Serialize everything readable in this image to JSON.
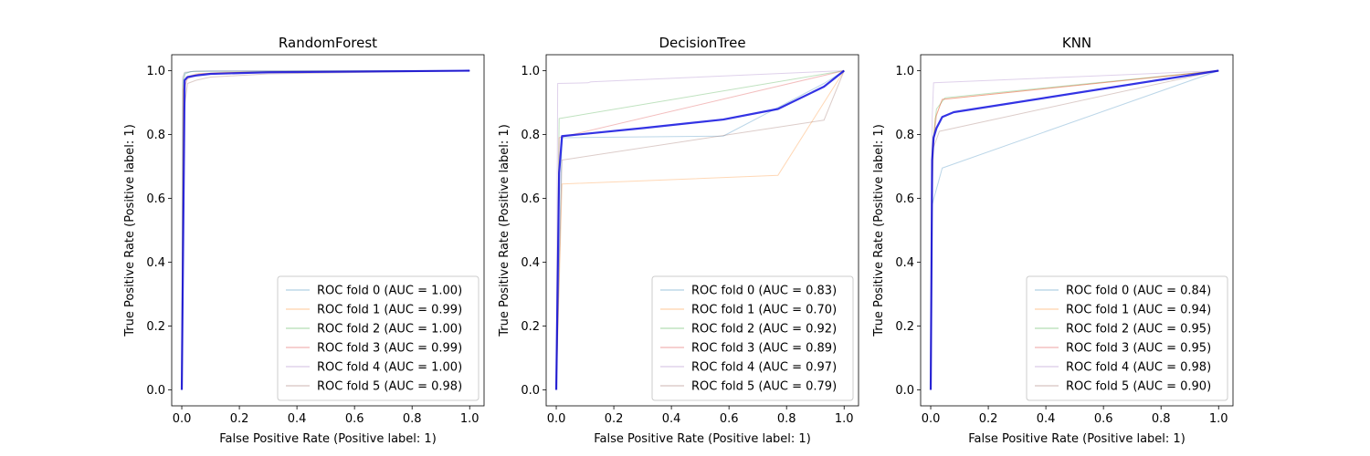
{
  "chart_data": [
    {
      "type": "line",
      "title": "RandomForest",
      "xlabel": "False Positive Rate (Positive label: 1)",
      "ylabel": "True Positive Rate (Positive label: 1)",
      "xlim": [
        -0.035,
        1.05
      ],
      "ylim": [
        -0.05,
        1.05
      ],
      "xticks": [
        "0.0",
        "0.2",
        "0.4",
        "0.6",
        "0.8",
        "1.0"
      ],
      "yticks": [
        "0.0",
        "0.2",
        "0.4",
        "0.6",
        "0.8",
        "1.0"
      ],
      "legend_position": "lower-right",
      "grid": false,
      "series": [
        {
          "name": "ROC fold 0 (AUC = 1.00)",
          "color": "#1f77b4",
          "x": [
            0,
            0.004,
            0.012,
            0.03,
            0.1,
            1.0
          ],
          "y": [
            0,
            0.96,
            0.99,
            0.997,
            0.999,
            1.0
          ]
        },
        {
          "name": "ROC fold 1 (AUC = 0.99)",
          "color": "#ff7f0e",
          "x": [
            0,
            0.005,
            0.015,
            0.05,
            0.15,
            1.0
          ],
          "y": [
            0,
            0.95,
            0.98,
            0.99,
            0.995,
            1.0
          ]
        },
        {
          "name": "ROC fold 2 (AUC = 1.00)",
          "color": "#2ca02c",
          "x": [
            0,
            0.004,
            0.01,
            0.04,
            1.0
          ],
          "y": [
            0,
            0.97,
            0.993,
            0.998,
            1.0
          ]
        },
        {
          "name": "ROC fold 3 (AUC = 0.99)",
          "color": "#d62728",
          "x": [
            0,
            0.006,
            0.02,
            0.06,
            0.2,
            1.0
          ],
          "y": [
            0,
            0.94,
            0.975,
            0.99,
            0.995,
            1.0
          ]
        },
        {
          "name": "ROC fold 4 (AUC = 1.00)",
          "color": "#9467bd",
          "x": [
            0,
            0.003,
            0.01,
            0.05,
            1.0
          ],
          "y": [
            0,
            0.98,
            0.995,
            0.999,
            1.0
          ]
        },
        {
          "name": "ROC fold 5 (AUC = 0.98)",
          "color": "#8c564b",
          "x": [
            0,
            0.008,
            0.02,
            0.05,
            0.1,
            0.3,
            1.0
          ],
          "y": [
            0,
            0.88,
            0.96,
            0.97,
            0.98,
            0.99,
            1.0
          ]
        }
      ],
      "mean": {
        "color": "#0000dd",
        "x": [
          0,
          0.01,
          0.02,
          0.05,
          0.1,
          0.3,
          1.0
        ],
        "y": [
          0,
          0.97,
          0.98,
          0.985,
          0.99,
          0.995,
          1.0
        ]
      }
    },
    {
      "type": "line",
      "title": "DecisionTree",
      "xlabel": "False Positive Rate (Positive label: 1)",
      "ylabel": "True Positive Rate (Positive label: 1)",
      "xlim": [
        -0.035,
        1.05
      ],
      "ylim": [
        -0.05,
        1.05
      ],
      "xticks": [
        "0.0",
        "0.2",
        "0.4",
        "0.6",
        "0.8",
        "1.0"
      ],
      "yticks": [
        "0.0",
        "0.2",
        "0.4",
        "0.6",
        "0.8",
        "1.0"
      ],
      "legend_position": "lower-right",
      "grid": false,
      "series": [
        {
          "name": "ROC fold 0 (AUC = 0.83)",
          "color": "#1f77b4",
          "x": [
            0,
            0.02,
            0.58,
            0.93,
            1.0
          ],
          "y": [
            0,
            0.79,
            0.795,
            0.96,
            1.0
          ]
        },
        {
          "name": "ROC fold 1 (AUC = 0.70)",
          "color": "#ff7f0e",
          "x": [
            0,
            0.02,
            0.77,
            1.0
          ],
          "y": [
            0,
            0.645,
            0.672,
            1.0
          ]
        },
        {
          "name": "ROC fold 2 (AUC = 0.92)",
          "color": "#2ca02c",
          "x": [
            0,
            0.01,
            1.0
          ],
          "y": [
            0,
            0.85,
            1.0
          ]
        },
        {
          "name": "ROC fold 3 (AUC = 0.89)",
          "color": "#d62728",
          "x": [
            0,
            0.01,
            1.0
          ],
          "y": [
            0,
            0.79,
            1.0
          ]
        },
        {
          "name": "ROC fold 4 (AUC = 0.97)",
          "color": "#9467bd",
          "x": [
            0,
            0.005,
            0.11,
            0.12,
            1.0
          ],
          "y": [
            0,
            0.96,
            0.962,
            0.965,
            1.0
          ]
        },
        {
          "name": "ROC fold 5 (AUC = 0.79)",
          "color": "#8c564b",
          "x": [
            0,
            0.02,
            0.93,
            1.0
          ],
          "y": [
            0,
            0.72,
            0.845,
            1.0
          ]
        }
      ],
      "mean": {
        "color": "#0000dd",
        "x": [
          0,
          0.01,
          0.02,
          0.3,
          0.58,
          0.77,
          0.93,
          1.0
        ],
        "y": [
          0,
          0.68,
          0.795,
          0.82,
          0.847,
          0.88,
          0.95,
          1.0
        ]
      }
    },
    {
      "type": "line",
      "title": "KNN",
      "xlabel": "False Positive Rate (Positive label: 1)",
      "ylabel": "True Positive Rate (Positive label: 1)",
      "xlim": [
        -0.035,
        1.05
      ],
      "ylim": [
        -0.05,
        1.05
      ],
      "xticks": [
        "0.0",
        "0.2",
        "0.4",
        "0.6",
        "0.8",
        "1.0"
      ],
      "yticks": [
        "0.0",
        "0.2",
        "0.4",
        "0.6",
        "0.8",
        "1.0"
      ],
      "legend_position": "lower-right",
      "grid": false,
      "series": [
        {
          "name": "ROC fold 0 (AUC = 0.84)",
          "color": "#1f77b4",
          "x": [
            0,
            0.005,
            0.04,
            1.0
          ],
          "y": [
            0,
            0.58,
            0.695,
            1.0
          ]
        },
        {
          "name": "ROC fold 1 (AUC = 0.94)",
          "color": "#ff7f0e",
          "x": [
            0,
            0.005,
            0.015,
            0.04,
            1.0
          ],
          "y": [
            0,
            0.72,
            0.85,
            0.91,
            1.0
          ]
        },
        {
          "name": "ROC fold 2 (AUC = 0.95)",
          "color": "#2ca02c",
          "x": [
            0,
            0.005,
            0.02,
            0.05,
            1.0
          ],
          "y": [
            0,
            0.75,
            0.88,
            0.915,
            1.0
          ]
        },
        {
          "name": "ROC fold 3 (AUC = 0.95)",
          "color": "#d62728",
          "x": [
            0,
            0.005,
            0.02,
            0.04,
            1.0
          ],
          "y": [
            0,
            0.74,
            0.86,
            0.91,
            1.0
          ]
        },
        {
          "name": "ROC fold 4 (AUC = 0.98)",
          "color": "#9467bd",
          "x": [
            0,
            0.005,
            0.01,
            1.0
          ],
          "y": [
            0,
            0.85,
            0.962,
            1.0
          ]
        },
        {
          "name": "ROC fold 5 (AUC = 0.90)",
          "color": "#8c564b",
          "x": [
            0,
            0.005,
            0.01,
            0.03,
            1.0
          ],
          "y": [
            0,
            0.63,
            0.76,
            0.81,
            1.0
          ]
        }
      ],
      "mean": {
        "color": "#0000dd",
        "x": [
          0,
          0.005,
          0.01,
          0.02,
          0.04,
          0.08,
          1.0
        ],
        "y": [
          0,
          0.72,
          0.79,
          0.82,
          0.855,
          0.87,
          1.0
        ]
      }
    }
  ]
}
